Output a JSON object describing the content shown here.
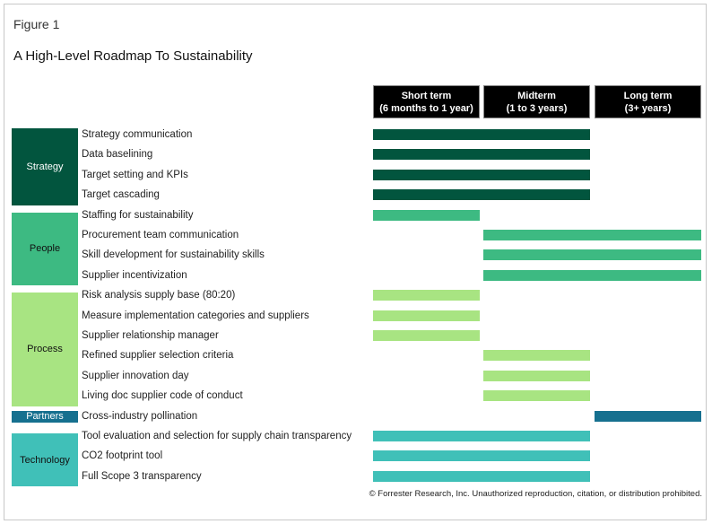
{
  "figure_label": "Figure 1",
  "title": "A High-Level Roadmap To Sustainability",
  "periods": [
    {
      "line1": "Short term",
      "line2": "(6 months to 1 year)"
    },
    {
      "line1": "Midterm",
      "line2": "(1 to 3 years)"
    },
    {
      "line1": "Long term",
      "line2": "(3+ years)"
    }
  ],
  "categories": [
    {
      "name": "Strategy",
      "color": "#02553e",
      "text_color": "#ffffff",
      "items": [
        {
          "label": "Strategy communication",
          "start": 0,
          "end": 1
        },
        {
          "label": "Data baselining",
          "start": 0,
          "end": 1
        },
        {
          "label": "Target setting and KPIs",
          "start": 0,
          "end": 1
        },
        {
          "label": "Target cascading",
          "start": 0,
          "end": 1
        }
      ]
    },
    {
      "name": "People",
      "color": "#3dba82",
      "text_color": "#111111",
      "items": [
        {
          "label": "Staffing for sustainability",
          "start": 0,
          "end": 0
        },
        {
          "label": "Procurement team communication",
          "start": 1,
          "end": 2
        },
        {
          "label": "Skill development for sustainability skills",
          "start": 1,
          "end": 2
        },
        {
          "label": "Supplier incentivization",
          "start": 1,
          "end": 2
        }
      ]
    },
    {
      "name": "Process",
      "color": "#a8e482",
      "text_color": "#111111",
      "items": [
        {
          "label": "Risk analysis supply base (80:20)",
          "start": 0,
          "end": 0
        },
        {
          "label": "Measure implementation categories and suppliers",
          "start": 0,
          "end": 0
        },
        {
          "label": "Supplier relationship manager",
          "start": 0,
          "end": 0
        },
        {
          "label": "Refined supplier selection criteria",
          "start": 1,
          "end": 1
        },
        {
          "label": "Supplier innovation day",
          "start": 1,
          "end": 1
        },
        {
          "label": "Living doc supplier code of conduct",
          "start": 1,
          "end": 1
        }
      ]
    },
    {
      "name": "Partners",
      "color": "#16708f",
      "text_color": "#ffffff",
      "items": [
        {
          "label": "Cross-industry pollination",
          "start": 2,
          "end": 2
        }
      ]
    },
    {
      "name": "Technology",
      "color": "#40c0b8",
      "text_color": "#111111",
      "items": [
        {
          "label": "Tool evaluation and selection for supply chain transparency",
          "start": 0,
          "end": 1
        },
        {
          "label": "CO2 footprint tool",
          "start": 0,
          "end": 1
        },
        {
          "label": "Full Scope 3 transparency",
          "start": 0,
          "end": 1
        }
      ]
    }
  ],
  "copyright": "© Forrester Research, Inc. Unauthorized reproduction, citation, or distribution prohibited."
}
